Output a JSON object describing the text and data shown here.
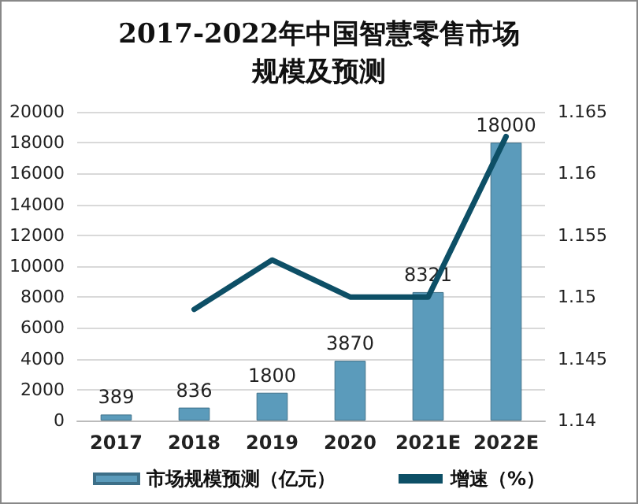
{
  "chart_data": {
    "type": "bar",
    "title": "2017-2022年中国智慧零售市场规模及预测",
    "categories": [
      "2017",
      "2018",
      "2019",
      "2020",
      "2021E",
      "2022E"
    ],
    "series": [
      {
        "name": "市场规模预测（亿元）",
        "color": "#5b9bbb",
        "values": [
          389,
          836,
          1800,
          3870,
          8321,
          18000
        ],
        "value_labels": [
          "389",
          "836",
          "1800",
          "3870",
          "8321",
          "18000"
        ]
      },
      {
        "name": "增速（%）",
        "type": "line",
        "axis": "y2",
        "color": "#0d4f66",
        "values": [
          null,
          1.149,
          1.153,
          1.15,
          1.15,
          1.163
        ]
      }
    ],
    "ylim": [
      0,
      20000
    ],
    "yticks": [
      0,
      2000,
      4000,
      6000,
      8000,
      10000,
      12000,
      14000,
      16000,
      18000,
      20000
    ],
    "y2lim": [
      1.14,
      1.165
    ],
    "y2ticks": [
      1.14,
      1.145,
      1.15,
      1.155,
      1.16,
      1.165
    ],
    "grid": "y",
    "legend": "bottom",
    "marker": "none"
  }
}
